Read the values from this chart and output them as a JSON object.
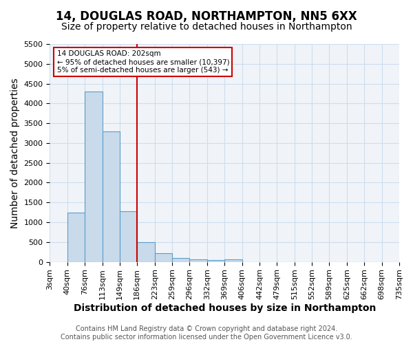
{
  "title_line1": "14, DOUGLAS ROAD, NORTHAMPTON, NN5 6XX",
  "title_line2": "Size of property relative to detached houses in Northampton",
  "xlabel": "Distribution of detached houses by size in Northampton",
  "ylabel": "Number of detached properties",
  "footnote": "Contains HM Land Registry data © Crown copyright and database right 2024.\nContains public sector information licensed under the Open Government Licence v3.0.",
  "bin_labels": [
    "3sqm",
    "40sqm",
    "76sqm",
    "113sqm",
    "149sqm",
    "186sqm",
    "223sqm",
    "259sqm",
    "296sqm",
    "332sqm",
    "369sqm",
    "406sqm",
    "442sqm",
    "479sqm",
    "515sqm",
    "552sqm",
    "589sqm",
    "625sqm",
    "662sqm",
    "698sqm",
    "735sqm"
  ],
  "bar_values": [
    0,
    1250,
    4300,
    3300,
    1280,
    500,
    220,
    90,
    60,
    50,
    55,
    0,
    0,
    0,
    0,
    0,
    0,
    0,
    0,
    0
  ],
  "bar_color": "#c9daea",
  "bar_edge_color": "#5a9ec9",
  "ylim": [
    0,
    5500
  ],
  "yticks": [
    0,
    500,
    1000,
    1500,
    2000,
    2500,
    3000,
    3500,
    4000,
    4500,
    5000,
    5500
  ],
  "property_line_x": 5,
  "property_line_color": "#cc0000",
  "annotation_text": "14 DOUGLAS ROAD: 202sqm\n← 95% of detached houses are smaller (10,397)\n5% of semi-detached houses are larger (543) →",
  "annotation_box_color": "#cc0000",
  "title_fontsize": 12,
  "subtitle_fontsize": 10,
  "axis_label_fontsize": 10,
  "tick_fontsize": 8,
  "footnote_fontsize": 7,
  "grid_color": "#ccddee",
  "background_color": "#f0f4f8"
}
